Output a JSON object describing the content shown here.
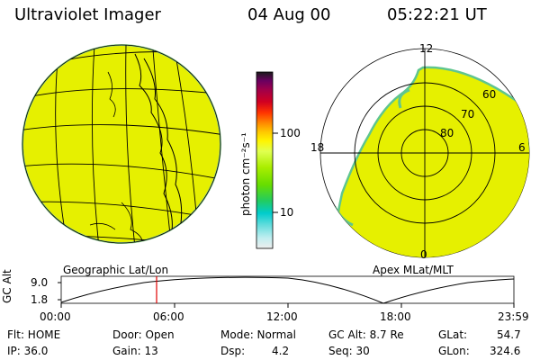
{
  "header": {
    "title": "Ultraviolet Imager",
    "date": "04 Aug 00",
    "time": "05:22:21  UT"
  },
  "colorbar": {
    "unit_label": "photon cm⁻²s⁻¹",
    "tick_100": "100",
    "tick_10": "10",
    "colors": [
      "#1a1a1a",
      "#6a0060",
      "#a0004a",
      "#d20020",
      "#ff3300",
      "#ff8a00",
      "#ffc800",
      "#fff400",
      "#e0ff50",
      "#aaee00",
      "#66dd00",
      "#22cc60",
      "#00cccc",
      "#66dddd",
      "#c0eef0",
      "#eeeeee"
    ]
  },
  "globe_map": {
    "caption": "Geographic Lat/Lon",
    "fill_color": "#e6f000"
  },
  "polar_map": {
    "caption": "Apex MLat/MLT",
    "mlt_labels": {
      "top": "12",
      "left": "18",
      "right": "6",
      "bottom": "0"
    },
    "lat_labels": [
      "60",
      "70",
      "80"
    ]
  },
  "altitude_plot": {
    "ylabel": "GC Alt",
    "y_ticks": [
      "9.0",
      "1.8"
    ],
    "x_ticks": [
      "00:00",
      "06:00",
      "12:00",
      "18:00",
      "23:59"
    ],
    "current_time_marker_color": "#e00000"
  },
  "status": {
    "flt": "Flt: HOME",
    "ip": "IP: 36.0",
    "door": "Door: Open",
    "gain": "Gain: 13",
    "mode": "Mode: Normal",
    "dsp": "Dsp:",
    "dsp_value": "4.2",
    "gc_alt": "GC Alt: 8.7 Re",
    "seq": "Seq: 30",
    "glat": "GLat:",
    "glat_value": "54.7",
    "glon": "GLon:",
    "glon_value": "324.6"
  }
}
